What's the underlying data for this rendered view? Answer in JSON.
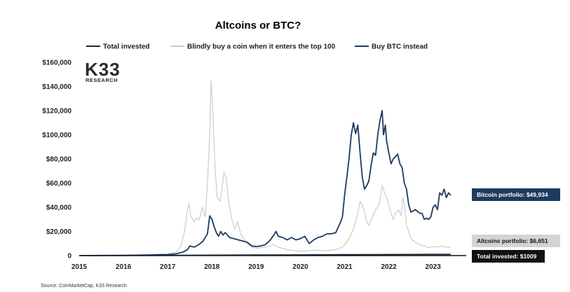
{
  "chart_data": {
    "type": "line",
    "title": "Altcoins or BTC?",
    "xlabel": "",
    "ylabel": "",
    "xlim": [
      2015.0,
      2023.75
    ],
    "ylim": [
      0,
      160000
    ],
    "x_ticks": [
      "2015",
      "2016",
      "2017",
      "2018",
      "2019",
      "2020",
      "2021",
      "2022",
      "2023"
    ],
    "y_ticks": [
      "0",
      "$20,000",
      "$40,000",
      "$60,000",
      "$80,000",
      "$100,000",
      "$120,000",
      "$140,000",
      "$160,000"
    ],
    "grid": false,
    "legend_position": "top",
    "series": [
      {
        "name": "Total invested",
        "color": "#1b2638",
        "points": [
          [
            2015.0,
            0
          ],
          [
            2017.0,
            200
          ],
          [
            2018.0,
            350
          ],
          [
            2019.0,
            480
          ],
          [
            2020.0,
            600
          ],
          [
            2021.0,
            750
          ],
          [
            2022.0,
            880
          ],
          [
            2023.0,
            960
          ],
          [
            2023.4,
            1009
          ]
        ]
      },
      {
        "name": "Blindly buy a coin when it enters the top 100",
        "color": "#cccccc",
        "points": [
          [
            2015.0,
            0
          ],
          [
            2015.5,
            200
          ],
          [
            2016.0,
            400
          ],
          [
            2016.5,
            800
          ],
          [
            2017.0,
            1500
          ],
          [
            2017.2,
            3000
          ],
          [
            2017.3,
            8000
          ],
          [
            2017.38,
            20000
          ],
          [
            2017.45,
            38000
          ],
          [
            2017.48,
            43000
          ],
          [
            2017.52,
            33000
          ],
          [
            2017.6,
            28000
          ],
          [
            2017.65,
            31000
          ],
          [
            2017.72,
            30000
          ],
          [
            2017.78,
            40000
          ],
          [
            2017.85,
            32000
          ],
          [
            2017.9,
            60000
          ],
          [
            2017.95,
            100000
          ],
          [
            2017.98,
            145000
          ],
          [
            2018.02,
            120000
          ],
          [
            2018.07,
            72000
          ],
          [
            2018.12,
            48000
          ],
          [
            2018.18,
            45000
          ],
          [
            2018.22,
            52000
          ],
          [
            2018.27,
            69000
          ],
          [
            2018.32,
            65000
          ],
          [
            2018.38,
            45000
          ],
          [
            2018.45,
            30000
          ],
          [
            2018.52,
            22000
          ],
          [
            2018.58,
            28000
          ],
          [
            2018.65,
            18000
          ],
          [
            2018.72,
            14000
          ],
          [
            2018.8,
            10000
          ],
          [
            2018.9,
            7000
          ],
          [
            2019.0,
            6000
          ],
          [
            2019.2,
            7000
          ],
          [
            2019.4,
            9000
          ],
          [
            2019.5,
            7000
          ],
          [
            2019.7,
            5000
          ],
          [
            2019.9,
            4000
          ],
          [
            2020.0,
            3500
          ],
          [
            2020.2,
            4000
          ],
          [
            2020.4,
            4500
          ],
          [
            2020.6,
            4000
          ],
          [
            2020.8,
            5000
          ],
          [
            2020.95,
            7000
          ],
          [
            2021.0,
            9000
          ],
          [
            2021.1,
            14000
          ],
          [
            2021.2,
            22000
          ],
          [
            2021.28,
            32000
          ],
          [
            2021.35,
            45000
          ],
          [
            2021.4,
            42000
          ],
          [
            2021.45,
            36000
          ],
          [
            2021.5,
            28000
          ],
          [
            2021.55,
            25000
          ],
          [
            2021.62,
            31000
          ],
          [
            2021.7,
            38000
          ],
          [
            2021.78,
            42000
          ],
          [
            2021.85,
            58000
          ],
          [
            2021.9,
            52000
          ],
          [
            2021.95,
            48000
          ],
          [
            2022.0,
            42000
          ],
          [
            2022.05,
            35000
          ],
          [
            2022.1,
            30000
          ],
          [
            2022.15,
            35000
          ],
          [
            2022.22,
            38000
          ],
          [
            2022.28,
            33000
          ],
          [
            2022.32,
            48000
          ],
          [
            2022.36,
            40000
          ],
          [
            2022.4,
            25000
          ],
          [
            2022.45,
            20000
          ],
          [
            2022.5,
            14000
          ],
          [
            2022.6,
            11000
          ],
          [
            2022.7,
            9000
          ],
          [
            2022.8,
            8000
          ],
          [
            2022.9,
            6500
          ],
          [
            2023.0,
            7500
          ],
          [
            2023.1,
            7000
          ],
          [
            2023.2,
            8000
          ],
          [
            2023.3,
            7000
          ],
          [
            2023.4,
            6651
          ]
        ]
      },
      {
        "name": "Buy BTC instead",
        "color": "#1e3a5f",
        "points": [
          [
            2015.0,
            0
          ],
          [
            2015.5,
            100
          ],
          [
            2016.0,
            200
          ],
          [
            2016.5,
            400
          ],
          [
            2017.0,
            800
          ],
          [
            2017.2,
            1500
          ],
          [
            2017.35,
            3000
          ],
          [
            2017.45,
            5000
          ],
          [
            2017.5,
            8000
          ],
          [
            2017.6,
            7000
          ],
          [
            2017.7,
            9000
          ],
          [
            2017.8,
            12000
          ],
          [
            2017.9,
            18000
          ],
          [
            2017.95,
            33000
          ],
          [
            2018.0,
            30000
          ],
          [
            2018.05,
            24000
          ],
          [
            2018.1,
            19000
          ],
          [
            2018.15,
            16000
          ],
          [
            2018.2,
            20000
          ],
          [
            2018.25,
            17000
          ],
          [
            2018.3,
            19000
          ],
          [
            2018.4,
            15000
          ],
          [
            2018.5,
            14000
          ],
          [
            2018.6,
            13000
          ],
          [
            2018.7,
            12000
          ],
          [
            2018.8,
            11000
          ],
          [
            2018.9,
            8000
          ],
          [
            2019.0,
            7500
          ],
          [
            2019.1,
            8000
          ],
          [
            2019.2,
            9000
          ],
          [
            2019.3,
            12000
          ],
          [
            2019.4,
            17000
          ],
          [
            2019.45,
            20000
          ],
          [
            2019.5,
            16000
          ],
          [
            2019.6,
            15000
          ],
          [
            2019.7,
            13000
          ],
          [
            2019.8,
            15000
          ],
          [
            2019.9,
            13000
          ],
          [
            2020.0,
            14000
          ],
          [
            2020.1,
            16000
          ],
          [
            2020.2,
            10000
          ],
          [
            2020.3,
            13000
          ],
          [
            2020.4,
            15000
          ],
          [
            2020.5,
            16000
          ],
          [
            2020.6,
            18000
          ],
          [
            2020.7,
            18000
          ],
          [
            2020.8,
            19000
          ],
          [
            2020.9,
            27000
          ],
          [
            2020.95,
            32000
          ],
          [
            2021.0,
            50000
          ],
          [
            2021.05,
            65000
          ],
          [
            2021.1,
            80000
          ],
          [
            2021.15,
            100000
          ],
          [
            2021.2,
            110000
          ],
          [
            2021.25,
            101000
          ],
          [
            2021.3,
            108000
          ],
          [
            2021.35,
            85000
          ],
          [
            2021.4,
            65000
          ],
          [
            2021.45,
            55000
          ],
          [
            2021.5,
            58000
          ],
          [
            2021.55,
            62000
          ],
          [
            2021.6,
            75000
          ],
          [
            2021.65,
            85000
          ],
          [
            2021.7,
            83000
          ],
          [
            2021.75,
            100000
          ],
          [
            2021.8,
            112000
          ],
          [
            2021.85,
            120000
          ],
          [
            2021.88,
            100000
          ],
          [
            2021.92,
            108000
          ],
          [
            2021.95,
            95000
          ],
          [
            2022.0,
            85000
          ],
          [
            2022.05,
            76000
          ],
          [
            2022.1,
            80000
          ],
          [
            2022.15,
            82000
          ],
          [
            2022.2,
            84000
          ],
          [
            2022.25,
            76000
          ],
          [
            2022.3,
            73000
          ],
          [
            2022.35,
            60000
          ],
          [
            2022.4,
            55000
          ],
          [
            2022.45,
            42000
          ],
          [
            2022.5,
            36000
          ],
          [
            2022.6,
            38000
          ],
          [
            2022.7,
            35000
          ],
          [
            2022.75,
            35000
          ],
          [
            2022.8,
            30000
          ],
          [
            2022.85,
            31000
          ],
          [
            2022.9,
            30000
          ],
          [
            2022.95,
            32000
          ],
          [
            2023.0,
            40000
          ],
          [
            2023.05,
            42000
          ],
          [
            2023.1,
            38000
          ],
          [
            2023.15,
            52000
          ],
          [
            2023.2,
            50000
          ],
          [
            2023.25,
            55000
          ],
          [
            2023.3,
            48000
          ],
          [
            2023.35,
            52000
          ],
          [
            2023.4,
            49934
          ]
        ]
      }
    ],
    "annotations": [
      {
        "text": "Bitcoin portfolio: $49,934",
        "series": 2,
        "bg": "#1e3a5f",
        "fg": "#ffffff"
      },
      {
        "text": "Altcoins portfolio: $6,651",
        "series": 1,
        "bg": "#d3d3d3",
        "fg": "#111111"
      },
      {
        "text": "Total invested: $1009",
        "series": 0,
        "bg": "#111111",
        "fg": "#ffffff"
      }
    ],
    "source": "Source: CoinMarketCap, K33 Research"
  },
  "logo": {
    "main": "K33",
    "sub": "RESEARCH"
  }
}
